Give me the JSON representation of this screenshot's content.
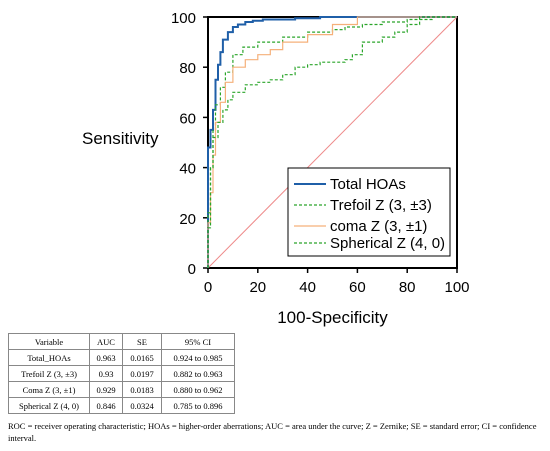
{
  "chart_data": {
    "type": "line",
    "xlabel": "100-Specificity",
    "ylabel": "Sensitivity",
    "xlim": [
      0,
      100
    ],
    "ylim": [
      0,
      100
    ],
    "x_ticks": [
      "0",
      "20",
      "40",
      "60",
      "80",
      "100"
    ],
    "y_ticks": [
      "0",
      "20",
      "40",
      "60",
      "80",
      "100"
    ],
    "grid": false,
    "legend_position": "bottom-right",
    "reference_line": {
      "x": [
        0,
        100
      ],
      "y": [
        0,
        100
      ],
      "color": "#ee8a8a"
    },
    "series": [
      {
        "name": "Total HOAs",
        "color": "#1f5fa8",
        "style": "solid",
        "x": [
          0,
          0,
          1,
          1,
          2,
          2,
          3,
          3,
          4,
          4,
          5,
          5,
          6,
          6,
          8,
          8,
          10,
          10,
          12,
          12,
          15,
          15,
          18,
          18,
          22,
          22,
          26,
          26,
          35,
          35,
          45,
          45,
          55,
          55,
          100
        ],
        "y": [
          0,
          48,
          48,
          55,
          55,
          63,
          63,
          75,
          75,
          81,
          81,
          86,
          86,
          91,
          91,
          94,
          94,
          96,
          96,
          97,
          97,
          98,
          98,
          98.5,
          98.5,
          99,
          99,
          99,
          99,
          99.5,
          99.5,
          100,
          100,
          100,
          100
        ]
      },
      {
        "name": "Trefoil Z (3, ±3)",
        "color": "#2aa52a",
        "style": "dashed",
        "x": [
          0,
          0,
          1,
          1,
          2,
          2,
          3,
          3,
          5,
          5,
          7,
          7,
          10,
          10,
          14,
          14,
          20,
          20,
          30,
          30,
          40,
          40,
          50,
          50,
          55,
          55,
          62,
          62,
          70,
          70,
          80,
          80,
          90,
          90,
          100
        ],
        "y": [
          0,
          22,
          22,
          40,
          40,
          55,
          55,
          65,
          65,
          72,
          72,
          78,
          78,
          85,
          85,
          88,
          88,
          90,
          90,
          92,
          92,
          94,
          94,
          95,
          95,
          96,
          96,
          97,
          97,
          98,
          98,
          99,
          99,
          100,
          100
        ]
      },
      {
        "name": "coma Z (3, ±1)",
        "color": "#f5b07a",
        "style": "solid",
        "x": [
          0,
          0,
          1,
          1,
          2,
          2,
          3,
          3,
          5,
          5,
          7,
          7,
          10,
          10,
          15,
          15,
          20,
          20,
          25,
          25,
          30,
          30,
          40,
          40,
          50,
          50,
          60,
          60,
          70,
          70,
          80,
          80,
          100
        ],
        "y": [
          0,
          18,
          18,
          30,
          30,
          45,
          45,
          58,
          58,
          66,
          66,
          74,
          74,
          80,
          80,
          83,
          83,
          85,
          85,
          87,
          87,
          90,
          90,
          93,
          93,
          97,
          97,
          100,
          100,
          100,
          100,
          100,
          100
        ]
      },
      {
        "name": "Spherical Z (4, 0)",
        "color": "#2aa52a",
        "style": "dashed",
        "x": [
          0,
          0,
          1,
          1,
          2,
          2,
          4,
          4,
          6,
          6,
          8,
          8,
          10,
          10,
          15,
          15,
          20,
          20,
          25,
          25,
          30,
          30,
          35,
          35,
          40,
          40,
          45,
          45,
          55,
          55,
          58,
          58,
          62,
          62,
          70,
          70,
          75,
          75,
          80,
          80,
          85,
          85,
          100
        ],
        "y": [
          0,
          16,
          16,
          40,
          40,
          52,
          52,
          58,
          58,
          63,
          63,
          67,
          67,
          70,
          70,
          73,
          73,
          74,
          74,
          75,
          75,
          77,
          77,
          80,
          80,
          81,
          81,
          82,
          82,
          83,
          83,
          85,
          85,
          90,
          90,
          92,
          92,
          94,
          94,
          97,
          97,
          100,
          100
        ]
      }
    ]
  },
  "table": {
    "headers": [
      "Variable",
      "AUC",
      "SE",
      "95% CI"
    ],
    "rows": [
      [
        "Total_HOAs",
        "0.963",
        "0.0165",
        "0.924 to 0.985"
      ],
      [
        "Trefoil Z (3, ±3)",
        "0.93",
        "0.0197",
        "0.882 to 0.963"
      ],
      [
        "Coma Z (3, ±1)",
        "0.929",
        "0.0183",
        "0.880 to 0.962"
      ],
      [
        "Spherical Z (4, 0)",
        "0.846",
        "0.0324",
        "0.785 to 0.896"
      ]
    ]
  },
  "footnote": "ROC = receiver operating characteristic; HOAs = higher-order aberrations; AUC = area under the curve; Z = Zernike; SE = standard error; CI = confidence interval."
}
